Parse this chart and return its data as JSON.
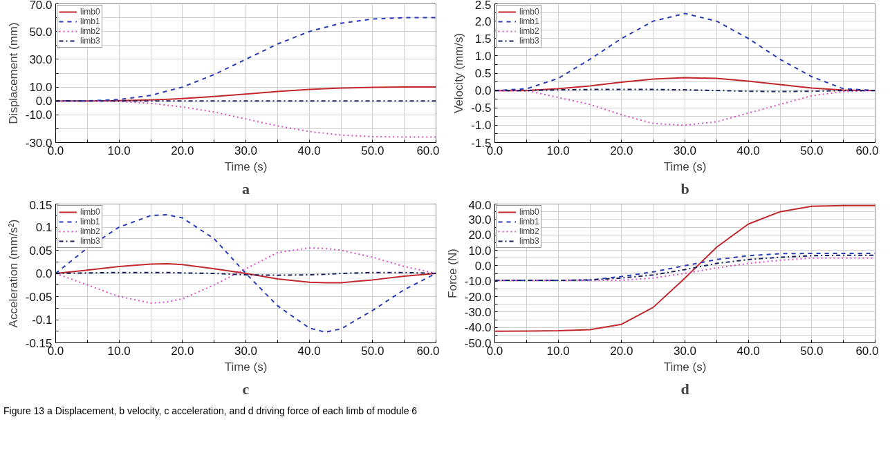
{
  "chart_data": [
    {
      "type": "line",
      "xlabel": "Time (s)",
      "ylabel": "Displacement (mm)",
      "annotations": [
        "a"
      ],
      "legend": "top left",
      "grid": true,
      "x": [
        0,
        5,
        10,
        15,
        20,
        25,
        30,
        35,
        40,
        45,
        50,
        55,
        60
      ],
      "xlim": [
        0,
        60
      ],
      "xticks": [
        {
          "value": 0,
          "label": "0.0"
        },
        {
          "value": 5,
          "label": null
        },
        {
          "value": 10,
          "label": "10.0"
        },
        {
          "value": 15,
          "label": null
        },
        {
          "value": 20,
          "label": "20.0"
        },
        {
          "value": 25,
          "label": null
        },
        {
          "value": 30,
          "label": "30.0"
        },
        {
          "value": 35,
          "label": null
        },
        {
          "value": 40,
          "label": "40.0"
        },
        {
          "value": 45,
          "label": null
        },
        {
          "value": 50,
          "label": "50.0"
        },
        {
          "value": 55,
          "label": null
        },
        {
          "value": 60,
          "label": "60.0"
        }
      ],
      "ylim": [
        -30,
        70
      ],
      "yticks": [
        {
          "value": -30,
          "label": "-30.0"
        },
        {
          "value": -20,
          "label": null
        },
        {
          "value": -10,
          "label": "-10.0"
        },
        {
          "value": 0,
          "label": "0.0"
        },
        {
          "value": 10,
          "label": "10.0"
        },
        {
          "value": 20,
          "label": null
        },
        {
          "value": 30,
          "label": "30.0"
        },
        {
          "value": 40,
          "label": null
        },
        {
          "value": 50,
          "label": "50.0"
        },
        {
          "value": 60,
          "label": null
        },
        {
          "value": 70,
          "label": "70.0"
        }
      ],
      "series": [
        {
          "name": "limb0",
          "color": "#c0282d",
          "line_style": "solid",
          "values": [
            0,
            0,
            0.2,
            0.7,
            1.7,
            3.2,
            5,
            6.8,
            8.3,
            9.3,
            9.8,
            10,
            10
          ]
        },
        {
          "name": "limb1",
          "color": "#2a3bb8",
          "line_style": "dashed",
          "values": [
            0,
            0,
            1,
            4,
            10,
            19,
            30,
            41,
            50,
            56,
            59,
            60,
            60
          ]
        },
        {
          "name": "limb2",
          "color": "#d94fc5",
          "line_style": "dotted",
          "values": [
            0,
            0,
            -0.4,
            -1.7,
            -4.3,
            -8,
            -13,
            -18,
            -22,
            -24.6,
            -25.7,
            -26,
            -26
          ]
        },
        {
          "name": "limb3",
          "color": "#1a1f5e",
          "line_style": "dashdot",
          "values": [
            0,
            0,
            0,
            0,
            0,
            0,
            0,
            0,
            0,
            0,
            0,
            0,
            0
          ]
        }
      ]
    },
    {
      "type": "line",
      "xlabel": "Time (s)",
      "ylabel": "Velocity (mm/s)",
      "annotations": [
        "b"
      ],
      "legend": "top left",
      "grid": true,
      "x": [
        0,
        5,
        10,
        15,
        20,
        25,
        30,
        35,
        40,
        45,
        50,
        55,
        60
      ],
      "xlim": [
        0,
        60
      ],
      "xticks": [
        {
          "value": 0,
          "label": "0.0"
        },
        {
          "value": 5,
          "label": null
        },
        {
          "value": 10,
          "label": "10.0"
        },
        {
          "value": 15,
          "label": null
        },
        {
          "value": 20,
          "label": "20.0"
        },
        {
          "value": 25,
          "label": null
        },
        {
          "value": 30,
          "label": "30.0"
        },
        {
          "value": 35,
          "label": null
        },
        {
          "value": 40,
          "label": "40.0"
        },
        {
          "value": 45,
          "label": null
        },
        {
          "value": 50,
          "label": "50.0"
        },
        {
          "value": 55,
          "label": null
        },
        {
          "value": 60,
          "label": "60.0"
        }
      ],
      "ylim": [
        -1.5,
        2.5
      ],
      "yticks": [
        -1.5,
        {
          "value": -1.25,
          "label": null
        },
        {
          "value": -1,
          "label": "-1.0"
        },
        {
          "value": -0.75,
          "label": null
        },
        -0.5,
        {
          "value": -0.25,
          "label": null
        },
        {
          "value": 0,
          "label": "0.0"
        },
        {
          "value": 0.25,
          "label": null
        },
        0.5,
        {
          "value": 0.75,
          "label": null
        },
        {
          "value": 1,
          "label": "1.0"
        },
        {
          "value": 1.25,
          "label": null
        },
        1.5,
        {
          "value": 1.75,
          "label": null
        },
        {
          "value": 2,
          "label": "2.0"
        },
        {
          "value": 2.25,
          "label": null
        },
        2.5
      ],
      "series": [
        {
          "name": "limb0",
          "color": "#c0282d",
          "line_style": "solid",
          "values": [
            0,
            0,
            0.05,
            0.13,
            0.24,
            0.33,
            0.37,
            0.35,
            0.27,
            0.17,
            0.07,
            0.01,
            0
          ]
        },
        {
          "name": "limb1",
          "color": "#2a3bb8",
          "line_style": "dashed",
          "values": [
            0,
            0.05,
            0.35,
            0.9,
            1.5,
            2.0,
            2.22,
            2.0,
            1.5,
            0.9,
            0.4,
            0.05,
            0
          ]
        },
        {
          "name": "limb2",
          "color": "#d94fc5",
          "line_style": "dotted",
          "values": [
            0,
            0,
            -0.2,
            -0.4,
            -0.7,
            -0.95,
            -1.0,
            -0.9,
            -0.65,
            -0.4,
            -0.15,
            -0.03,
            0
          ]
        },
        {
          "name": "limb3",
          "color": "#1a1f5e",
          "line_style": "dashdot",
          "values": [
            0,
            0,
            0.02,
            0.03,
            0.03,
            0.03,
            0.02,
            0,
            -0.02,
            -0.03,
            -0.02,
            0,
            0
          ]
        }
      ]
    },
    {
      "type": "line",
      "xlabel": "Time (s)",
      "ylabel": "Acceleration (mm/s²)",
      "annotations": [
        "c"
      ],
      "legend": "top left",
      "grid": true,
      "x": [
        0,
        5,
        10,
        15,
        17.5,
        20,
        25,
        30,
        35,
        40,
        42.5,
        45,
        50,
        55,
        60
      ],
      "xlim": [
        0,
        60
      ],
      "xticks": [
        {
          "value": 0,
          "label": "0.0"
        },
        {
          "value": 5,
          "label": null
        },
        {
          "value": 10,
          "label": "10.0"
        },
        {
          "value": 15,
          "label": null
        },
        {
          "value": 20,
          "label": "20.0"
        },
        {
          "value": 25,
          "label": null
        },
        {
          "value": 30,
          "label": "30.0"
        },
        {
          "value": 35,
          "label": null
        },
        {
          "value": 40,
          "label": "40.0"
        },
        {
          "value": 45,
          "label": null
        },
        {
          "value": 50,
          "label": "50.0"
        },
        {
          "value": 55,
          "label": null
        },
        {
          "value": 60,
          "label": "60.0"
        }
      ],
      "ylim": [
        -0.15,
        0.15
      ],
      "yticks": [
        -0.15,
        {
          "value": -0.125,
          "label": null
        },
        -0.1,
        {
          "value": -0.075,
          "label": null
        },
        -0.05,
        {
          "value": -0.025,
          "label": null
        },
        {
          "value": 0,
          "label": "0.0"
        },
        {
          "value": 0.025,
          "label": null
        },
        0.05,
        {
          "value": 0.075,
          "label": null
        },
        0.1,
        {
          "value": 0.125,
          "label": null
        },
        0.15
      ],
      "series": [
        {
          "name": "limb0",
          "color": "#c0282d",
          "line_style": "solid",
          "values": [
            0,
            0.007,
            0.015,
            0.02,
            0.021,
            0.019,
            0.01,
            0,
            -0.012,
            -0.019,
            -0.02,
            -0.02,
            -0.014,
            -0.006,
            0
          ]
        },
        {
          "name": "limb1",
          "color": "#2a3bb8",
          "line_style": "dashed",
          "values": [
            0,
            0.055,
            0.1,
            0.125,
            0.127,
            0.12,
            0.075,
            0,
            -0.07,
            -0.118,
            -0.127,
            -0.12,
            -0.08,
            -0.035,
            0
          ]
        },
        {
          "name": "limb2",
          "color": "#d94fc5",
          "line_style": "dotted",
          "values": [
            0,
            -0.025,
            -0.05,
            -0.064,
            -0.062,
            -0.055,
            -0.025,
            0.01,
            0.045,
            0.055,
            0.054,
            0.05,
            0.035,
            0.015,
            0
          ]
        },
        {
          "name": "limb3",
          "color": "#1a1f5e",
          "line_style": "dashdot",
          "values": [
            0,
            0.001,
            0.002,
            0.002,
            0.002,
            0.001,
            0,
            -0.003,
            -0.004,
            -0.003,
            -0.002,
            0,
            0.002,
            0.002,
            0
          ]
        }
      ]
    },
    {
      "type": "line",
      "xlabel": "Time (s)",
      "ylabel": "Force (N)",
      "annotations": [
        "d",
        "Figure 13  a Displacement, b velocity, c acceleration, and d driving force of each limb of module 6"
      ],
      "legend": "top left",
      "grid": true,
      "x": [
        0,
        5,
        10,
        15,
        20,
        25,
        30,
        32.5,
        35,
        40,
        45,
        50,
        55,
        60
      ],
      "xlim": [
        0,
        60
      ],
      "xticks": [
        {
          "value": 0,
          "label": "0.0"
        },
        {
          "value": 5,
          "label": null
        },
        {
          "value": 10,
          "label": "10.0"
        },
        {
          "value": 15,
          "label": null
        },
        {
          "value": 20,
          "label": "20.0"
        },
        {
          "value": 25,
          "label": null
        },
        {
          "value": 30,
          "label": "30.0"
        },
        {
          "value": 35,
          "label": null
        },
        {
          "value": 40,
          "label": "40.0"
        },
        {
          "value": 45,
          "label": null
        },
        {
          "value": 50,
          "label": "50.0"
        },
        {
          "value": 55,
          "label": null
        },
        {
          "value": 60,
          "label": "60.0"
        }
      ],
      "ylim": [
        -50,
        40
      ],
      "yticks": [
        {
          "value": -50,
          "label": "-50.0"
        },
        {
          "value": -45,
          "label": null
        },
        {
          "value": -40,
          "label": "-40.0"
        },
        {
          "value": -35,
          "label": null
        },
        {
          "value": -30,
          "label": "-30.0"
        },
        {
          "value": -25,
          "label": null
        },
        {
          "value": -20,
          "label": "-20.0"
        },
        {
          "value": -15,
          "label": null
        },
        {
          "value": -10,
          "label": "-10.0"
        },
        {
          "value": -5,
          "label": null
        },
        {
          "value": 0,
          "label": "0.0"
        },
        {
          "value": 5,
          "label": null
        },
        {
          "value": 10,
          "label": "10.0"
        },
        {
          "value": 15,
          "label": null
        },
        {
          "value": 20,
          "label": "20.0"
        },
        {
          "value": 25,
          "label": null
        },
        {
          "value": 30,
          "label": "30.0"
        },
        {
          "value": 35,
          "label": null
        },
        {
          "value": 40,
          "label": "40.0"
        }
      ],
      "series": [
        {
          "name": "limb0",
          "color": "#c0282d",
          "line_style": "solid",
          "values": [
            -42.5,
            -42.4,
            -42.2,
            -41.5,
            -38,
            -27,
            -8,
            2,
            12,
            27,
            35,
            38.5,
            39,
            39
          ]
        },
        {
          "name": "limb1",
          "color": "#2a3bb8",
          "line_style": "dashed",
          "values": [
            -9.5,
            -9.5,
            -9.5,
            -9.3,
            -7,
            -4,
            0,
            2,
            4,
            6.5,
            7.8,
            8,
            8,
            8
          ]
        },
        {
          "name": "limb2",
          "color": "#d94fc5",
          "line_style": "dotted",
          "values": [
            -9.5,
            -9.5,
            -9.5,
            -9.5,
            -9.5,
            -8,
            -5,
            -3.2,
            -1.5,
            1.5,
            3.5,
            5,
            5,
            5
          ]
        },
        {
          "name": "limb3",
          "color": "#1a1f5e",
          "line_style": "dashdot",
          "values": [
            -9.5,
            -9.5,
            -9.5,
            -9.2,
            -8,
            -6,
            -2.5,
            -0.5,
            1.5,
            4,
            5.5,
            6.5,
            6.8,
            6.8
          ]
        }
      ]
    }
  ]
}
